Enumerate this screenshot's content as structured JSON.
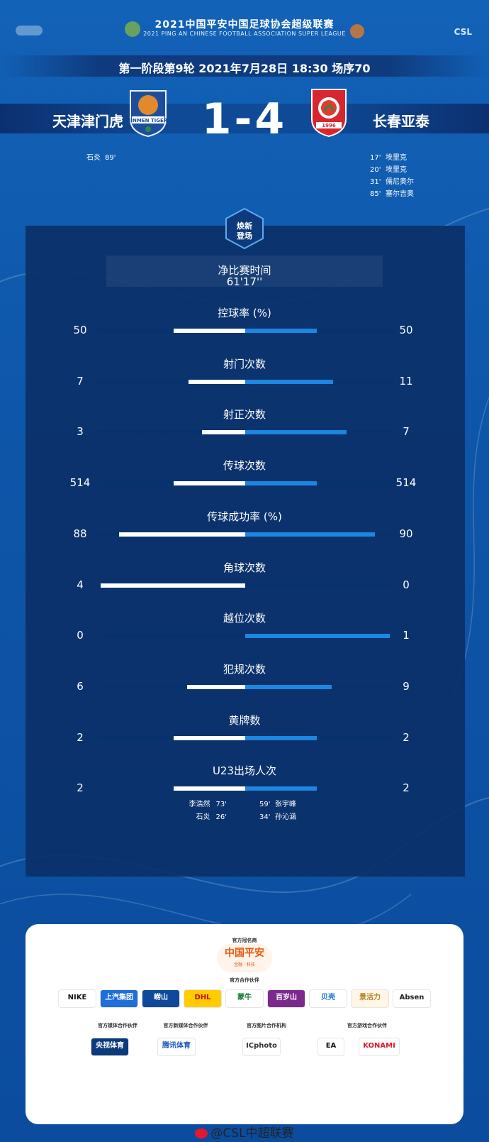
{
  "header": {
    "title": "2021中国平安中国足球协会超级联赛",
    "subtitle": "2021 PING AN CHINESE FOOTBALL ASSOCIATION SUPER LEAGUE",
    "brand_mark": "CSL"
  },
  "match": {
    "round_info": "第一阶段第9轮  2021年7月28日 18:30 场序70",
    "home_team": "天津津门虎",
    "away_team": "长春亚泰",
    "score": "1-4",
    "home_crest_text": "JINMEN TIGER",
    "away_crest_text": "1996",
    "home_scorers": [
      {
        "name": "石炎",
        "minute": "89'"
      }
    ],
    "away_scorers": [
      {
        "minute": "17'",
        "name": "埃里克"
      },
      {
        "minute": "20'",
        "name": "埃里克"
      },
      {
        "minute": "31'",
        "name": "儒尼奥尔"
      },
      {
        "minute": "85'",
        "name": "塞尔吉奥"
      }
    ]
  },
  "badge": {
    "text": "焕新登场"
  },
  "net_time": {
    "label": "净比赛时间",
    "value": "61'17''"
  },
  "stats": [
    {
      "label": "控球率 (%)",
      "home": "50",
      "away": "50",
      "home_share": 0.48,
      "away_share": 0.48
    },
    {
      "label": "射门次数",
      "home": "7",
      "away": "11",
      "home_share": 0.38,
      "away_share": 0.59
    },
    {
      "label": "射正次数",
      "home": "3",
      "away": "7",
      "home_share": 0.29,
      "away_share": 0.68
    },
    {
      "label": "传球次数",
      "home": "514",
      "away": "514",
      "home_share": 0.48,
      "away_share": 0.48
    },
    {
      "label": "传球成功率 (%)",
      "home": "88",
      "away": "90",
      "home_share": 0.85,
      "away_share": 0.87
    },
    {
      "label": "角球次数",
      "home": "4",
      "away": "0",
      "home_share": 0.97,
      "away_share": 0.0
    },
    {
      "label": "越位次数",
      "home": "0",
      "away": "1",
      "home_share": 0.0,
      "away_share": 0.97
    },
    {
      "label": "犯规次数",
      "home": "6",
      "away": "9",
      "home_share": 0.39,
      "away_share": 0.58
    },
    {
      "label": "黄牌数",
      "home": "2",
      "away": "2",
      "home_share": 0.48,
      "away_share": 0.48
    },
    {
      "label": "U23出场人次",
      "home": "2",
      "away": "2",
      "home_share": 0.48,
      "away_share": 0.48
    }
  ],
  "u23": {
    "home": [
      {
        "name": "李浩然",
        "minute": "73'"
      },
      {
        "name": "石炎",
        "minute": "26'"
      }
    ],
    "away": [
      {
        "minute": "59'",
        "name": "张宇峰"
      },
      {
        "minute": "34'",
        "name": "孙沁涵"
      }
    ]
  },
  "sponsors": {
    "title_sponsor_head": "官方冠名商",
    "title_sponsor": "中国平安",
    "title_sponsor_sub": "金融 · 科技",
    "partners_head": "官方合作伙伴",
    "partners": [
      "NIKE",
      "上汽集团",
      "崂山",
      "DHL",
      "蒙牛",
      "百岁山",
      "贝壳",
      "景活力",
      "Absen"
    ],
    "media_heads": [
      "官方媒体合作伙伴",
      "官方新媒体合作伙伴",
      "官方图片合作机构",
      "官方游戏合作伙伴"
    ],
    "media_logos": [
      "央视体育",
      "腾讯体育",
      "ICphoto",
      "EA",
      "KONAMI"
    ]
  },
  "footer": {
    "weibo_handle": "@CSL中超联赛"
  },
  "colors": {
    "home_bar": "#ffffff",
    "away_bar": "#1d86e0",
    "panel": "#0b3068"
  }
}
